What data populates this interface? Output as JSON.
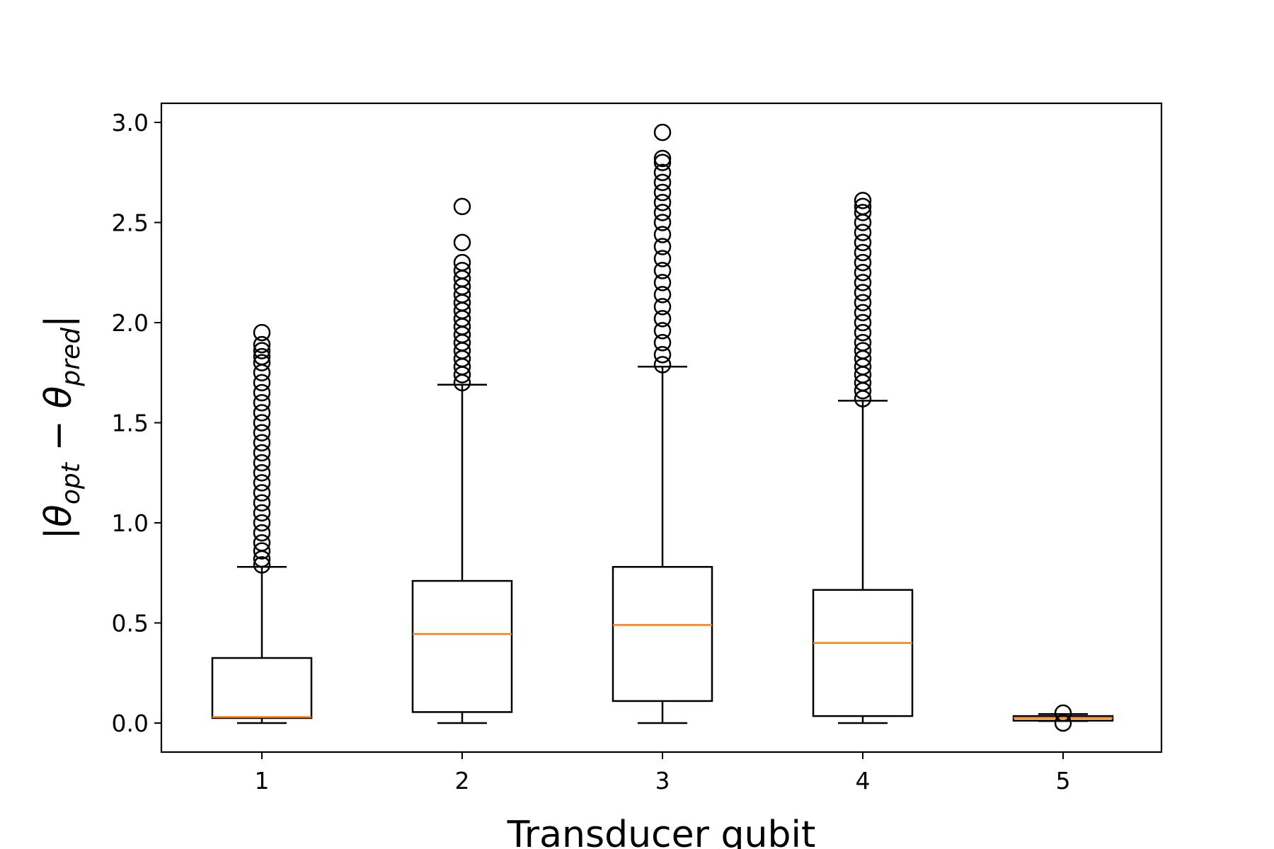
{
  "chart_data": {
    "type": "box",
    "xlabel": "Transducer qubit",
    "ylabel": {
      "open": "|",
      "theta1": "θ",
      "sub1": "opt",
      "minus": " − ",
      "theta2": "θ",
      "sub2": "pred",
      "close": "|"
    },
    "ylim": [
      -0.15,
      3.1
    ],
    "yticks": [
      "0.0",
      "0.5",
      "1.0",
      "1.5",
      "2.0",
      "2.5",
      "3.0"
    ],
    "categories": [
      "1",
      "2",
      "3",
      "4",
      "5"
    ],
    "boxes": [
      {
        "category": "1",
        "whisker_low": 0.0,
        "q1": 0.025,
        "median": 0.03,
        "q3": 0.325,
        "whisker_high": 0.78,
        "outliers": [
          0.79,
          0.82,
          0.86,
          0.9,
          0.95,
          1.0,
          1.05,
          1.1,
          1.15,
          1.2,
          1.25,
          1.3,
          1.35,
          1.4,
          1.45,
          1.5,
          1.55,
          1.6,
          1.65,
          1.7,
          1.75,
          1.8,
          1.83,
          1.86,
          1.89,
          1.95
        ]
      },
      {
        "category": "2",
        "whisker_low": 0.0,
        "q1": 0.055,
        "median": 0.445,
        "q3": 0.71,
        "whisker_high": 1.69,
        "outliers": [
          1.7,
          1.74,
          1.78,
          1.82,
          1.86,
          1.9,
          1.94,
          1.98,
          2.02,
          2.06,
          2.1,
          2.14,
          2.18,
          2.22,
          2.26,
          2.3,
          2.4,
          2.58
        ]
      },
      {
        "category": "3",
        "whisker_low": 0.0,
        "q1": 0.11,
        "median": 0.49,
        "q3": 0.78,
        "whisker_high": 1.78,
        "outliers": [
          1.79,
          1.84,
          1.9,
          1.96,
          2.02,
          2.08,
          2.14,
          2.2,
          2.26,
          2.32,
          2.38,
          2.44,
          2.5,
          2.55,
          2.6,
          2.65,
          2.7,
          2.75,
          2.8,
          2.82,
          2.95
        ]
      },
      {
        "category": "4",
        "whisker_low": 0.0,
        "q1": 0.035,
        "median": 0.4,
        "q3": 0.665,
        "whisker_high": 1.61,
        "outliers": [
          1.62,
          1.66,
          1.7,
          1.74,
          1.78,
          1.82,
          1.86,
          1.9,
          1.95,
          2.0,
          2.05,
          2.1,
          2.15,
          2.2,
          2.25,
          2.3,
          2.35,
          2.4,
          2.45,
          2.5,
          2.55,
          2.58,
          2.61
        ]
      },
      {
        "category": "5",
        "whisker_low": 0.01,
        "q1": 0.012,
        "median": 0.025,
        "q3": 0.035,
        "whisker_high": 0.045,
        "outliers": [
          0.0,
          0.05
        ]
      }
    ],
    "colors": {
      "box": "#000000",
      "median": "#ff7f0e"
    }
  }
}
